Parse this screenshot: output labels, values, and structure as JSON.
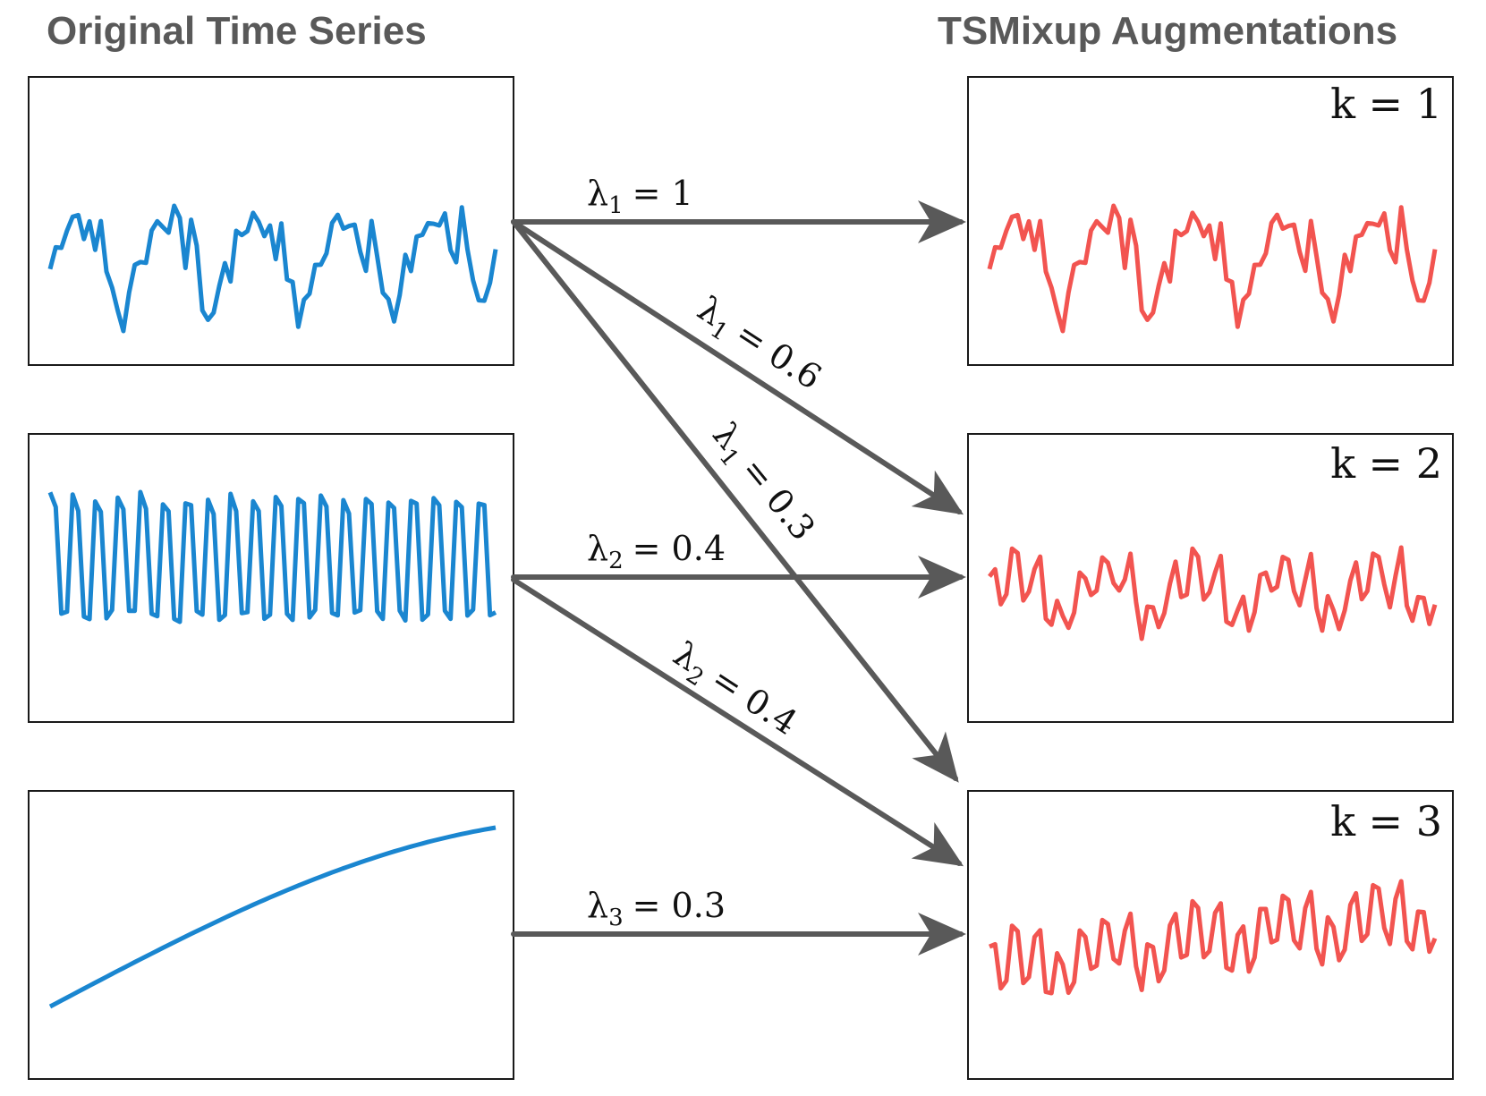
{
  "headers": {
    "left": "Original Time Series",
    "right": "TSMixup Augmentations"
  },
  "augmentations": [
    {
      "k_label": "k = 1"
    },
    {
      "k_label": "k = 2"
    },
    {
      "k_label": "k = 3"
    }
  ],
  "edges": [
    {
      "from": 1,
      "to": 1,
      "label": "λ1 = 1",
      "symbol": "λ",
      "sub": "1",
      "value": "= 1"
    },
    {
      "from": 1,
      "to": 2,
      "label": "λ1 = 0.6",
      "symbol": "λ",
      "sub": "1",
      "value": "= 0.6"
    },
    {
      "from": 1,
      "to": 3,
      "label": "λ1 = 0.3",
      "symbol": "λ",
      "sub": "1",
      "value": "= 0.3"
    },
    {
      "from": 2,
      "to": 2,
      "label": "λ2 = 0.4",
      "symbol": "λ",
      "sub": "2",
      "value": "= 0.4"
    },
    {
      "from": 2,
      "to": 3,
      "label": "λ2 = 0.4",
      "symbol": "λ",
      "sub": "2",
      "value": "= 0.4"
    },
    {
      "from": 3,
      "to": 3,
      "label": "λ3 = 0.3",
      "symbol": "λ",
      "sub": "3",
      "value": "= 0.3"
    }
  ],
  "colors": {
    "original_series": "#1a86d0",
    "augmented_series": "#f25450",
    "arrows": "#595959",
    "panel_border": "#1a1a1a",
    "header_text": "#595959"
  }
}
